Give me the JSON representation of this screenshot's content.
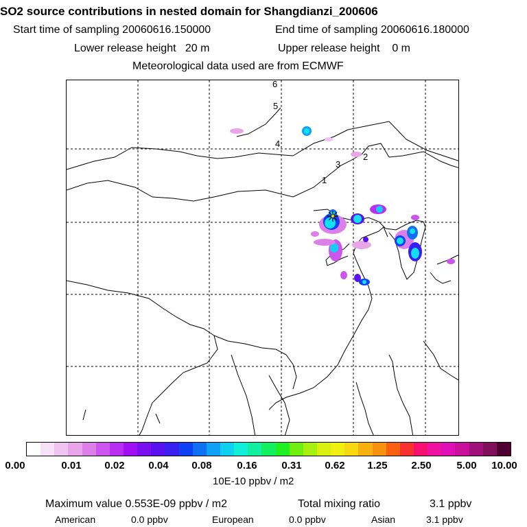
{
  "header": {
    "title": "SO2 source contributions in nested domain for Shangdianzi_200606",
    "start_label": "Start time of sampling 20060616.150000",
    "end_label": "End time of sampling 20060616.180000",
    "lower_label": "Lower release height   20 m",
    "upper_label": "Upper release height    0 m",
    "met_label": "Meteorological data used are from ECMWF"
  },
  "map": {
    "contour_labels": [
      "6",
      "5",
      "4",
      "3",
      "2",
      "1"
    ]
  },
  "colorbar": {
    "ticks": [
      "0.00",
      "0.01",
      "0.02",
      "0.04",
      "0.08",
      "0.16",
      "0.31",
      "0.62",
      "1.25",
      "2.50",
      "5.00",
      "10.00"
    ],
    "unit": "10E-10 ppbv / m2",
    "colors": [
      "#ffffff",
      "#f7e1f7",
      "#f0c4f0",
      "#e8a6e8",
      "#dd7fe8",
      "#cc55ee",
      "#b82ef2",
      "#a010f5",
      "#7a10f0",
      "#5a10ef",
      "#3a20f0",
      "#1040f5",
      "#1070f5",
      "#10a0f5",
      "#10d0f0",
      "#10f0d8",
      "#10f0a0",
      "#10f060",
      "#20f020",
      "#70f010",
      "#a8f010",
      "#d8f010",
      "#f0f010",
      "#f8d810",
      "#f8b010",
      "#f89010",
      "#f86010",
      "#f83030",
      "#f81070",
      "#f010a0",
      "#e010b8",
      "#c8109a",
      "#a0107a",
      "#80105a",
      "#500030"
    ]
  },
  "summary": {
    "max_label": "Maximum value  0.553E-09 ppbv / m2",
    "total_label": "Total mixing ratio",
    "total_value": "3.1 ppbv",
    "american_label": "American",
    "american_value": "0.0 ppbv",
    "european_label": "European",
    "european_value": "0.0 ppbv",
    "asian_label": "Asian",
    "asian_value": "3.1 ppbv"
  }
}
